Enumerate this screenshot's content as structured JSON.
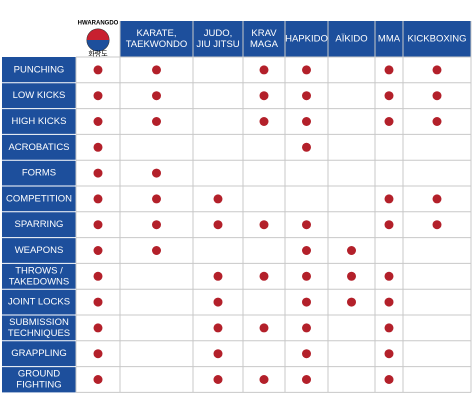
{
  "header": {
    "logo_text": "HWARANGDO",
    "logo_korean": "화랑도"
  },
  "columns": [
    {
      "label": [
        "KARATE,",
        "TAEKWONDO"
      ]
    },
    {
      "label": [
        "JUDO,",
        "JIU JITSU"
      ]
    },
    {
      "label": [
        "KRAV",
        "MAGA"
      ]
    },
    {
      "label": [
        "HAPKIDO"
      ]
    },
    {
      "label": [
        "AÏKIDO"
      ]
    },
    {
      "label": [
        "MMA"
      ]
    },
    {
      "label": [
        "KICKBOXING"
      ]
    }
  ],
  "rows": [
    {
      "label": [
        "PUNCHING"
      ],
      "cells": [
        true,
        true,
        false,
        true,
        true,
        false,
        true,
        true
      ]
    },
    {
      "label": [
        "LOW KICKS"
      ],
      "cells": [
        true,
        true,
        false,
        true,
        true,
        false,
        true,
        true
      ]
    },
    {
      "label": [
        "HIGH KICKS"
      ],
      "cells": [
        true,
        true,
        false,
        true,
        true,
        false,
        true,
        true
      ]
    },
    {
      "label": [
        "ACROBATICS"
      ],
      "cells": [
        true,
        false,
        false,
        false,
        true,
        false,
        false,
        false
      ]
    },
    {
      "label": [
        "FORMS"
      ],
      "cells": [
        true,
        true,
        false,
        false,
        false,
        false,
        false,
        false
      ]
    },
    {
      "label": [
        "COMPETITION"
      ],
      "cells": [
        true,
        true,
        true,
        false,
        false,
        false,
        true,
        true
      ]
    },
    {
      "label": [
        "SPARRING"
      ],
      "cells": [
        true,
        true,
        true,
        true,
        true,
        false,
        true,
        true
      ]
    },
    {
      "label": [
        "WEAPONS"
      ],
      "cells": [
        true,
        true,
        false,
        false,
        true,
        true,
        false,
        false
      ]
    },
    {
      "label": [
        "THROWS /",
        "TAKEDOWNS"
      ],
      "cells": [
        true,
        false,
        true,
        true,
        true,
        true,
        true,
        false
      ]
    },
    {
      "label": [
        "JOINT LOCKS"
      ],
      "cells": [
        true,
        false,
        true,
        false,
        true,
        true,
        true,
        false
      ]
    },
    {
      "label": [
        "SUBMISSION",
        "TECHNIQUES"
      ],
      "cells": [
        true,
        false,
        true,
        true,
        true,
        false,
        true,
        false
      ]
    },
    {
      "label": [
        "GRAPPLING"
      ],
      "cells": [
        true,
        false,
        true,
        false,
        true,
        false,
        true,
        false
      ]
    },
    {
      "label": [
        "GROUND",
        "FIGHTING"
      ],
      "cells": [
        true,
        false,
        true,
        true,
        true,
        false,
        true,
        false
      ]
    }
  ]
}
